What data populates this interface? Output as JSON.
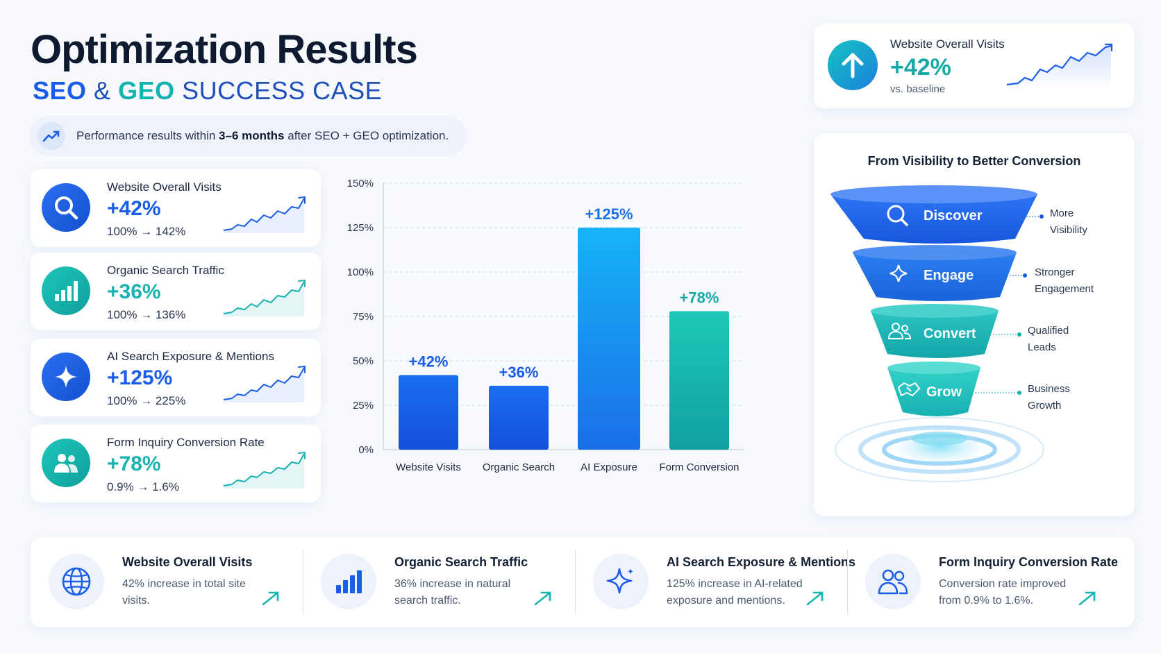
{
  "header": {
    "title": "Optimization Results",
    "subtitle_seo": "SEO",
    "subtitle_amp": "&",
    "subtitle_geo": "GEO",
    "subtitle_rest": "SUCCESS CASE",
    "note_prefix": "Performance results within ",
    "note_bold": "3–6 months",
    "note_suffix": " after SEO + GEO optimization."
  },
  "top_card": {
    "label": "Website Overall Visits",
    "value": "+42%",
    "sub": "vs. baseline",
    "icon": "arrow-up-icon"
  },
  "metrics": [
    {
      "label": "Website Overall Visits",
      "value": "+42%",
      "range": "100% → 142%",
      "icon": "search-icon",
      "color": "#1a5ee8"
    },
    {
      "label": "Organic Search Traffic",
      "value": "+36%",
      "range": "100% → 136%",
      "icon": "bar-chart-icon",
      "color": "#16b3b0"
    },
    {
      "label": "AI Search Exposure & Mentions",
      "value": "+125%",
      "range": "100% → 225%",
      "icon": "sparkle-icon",
      "color": "#1a5ee8"
    },
    {
      "label": "Form Inquiry Conversion Rate",
      "value": "+78%",
      "range": "0.9% → 1.6%",
      "icon": "users-icon",
      "color": "#16b3b0"
    }
  ],
  "chart_data": {
    "type": "bar",
    "categories": [
      "Website Visits",
      "Organic Search",
      "AI Exposure",
      "Form Conversion"
    ],
    "values": [
      42,
      36,
      125,
      78
    ],
    "data_labels": [
      "+42%",
      "+36%",
      "+125%",
      "+78%"
    ],
    "ylim": [
      0,
      150
    ],
    "yticks": [
      "0%",
      "25%",
      "50%",
      "75%",
      "100%",
      "125%",
      "150%"
    ],
    "grid": true,
    "colors": [
      "#1a5ee8",
      "#1a5ee8",
      "#12a7f0",
      "#16b3b0"
    ]
  },
  "funnel": {
    "title": "From Visibility to Better Conversion",
    "stages": [
      {
        "label": "Discover",
        "icon": "search-icon",
        "side": [
          "More",
          "Visibility"
        ]
      },
      {
        "label": "Engage",
        "icon": "sparkle-icon",
        "side": [
          "Stronger",
          "Engagement"
        ]
      },
      {
        "label": "Convert",
        "icon": "users-icon",
        "side": [
          "Qualified",
          "Leads"
        ]
      },
      {
        "label": "Grow",
        "icon": "handshake-icon",
        "side": [
          "Business",
          "Growth"
        ]
      }
    ]
  },
  "bottom": [
    {
      "label": "Website Overall Visits",
      "desc": "42% increase in total site visits.",
      "icon": "globe-icon"
    },
    {
      "label": "Organic Search Traffic",
      "desc": "36% increase in natural search traffic.",
      "icon": "bar-chart-icon"
    },
    {
      "label": "AI Search Exposure & Mentions",
      "desc": "125% increase in AI-related exposure and mentions.",
      "icon": "sparkle-icon"
    },
    {
      "label": "Form Inquiry Conversion Rate",
      "desc": "Conversion rate improved from 0.9% to 1.6%.",
      "icon": "users-icon"
    }
  ],
  "colors": {
    "blue": "#1a5ee8",
    "teal": "#16b3b0",
    "sky": "#12a7f0"
  }
}
